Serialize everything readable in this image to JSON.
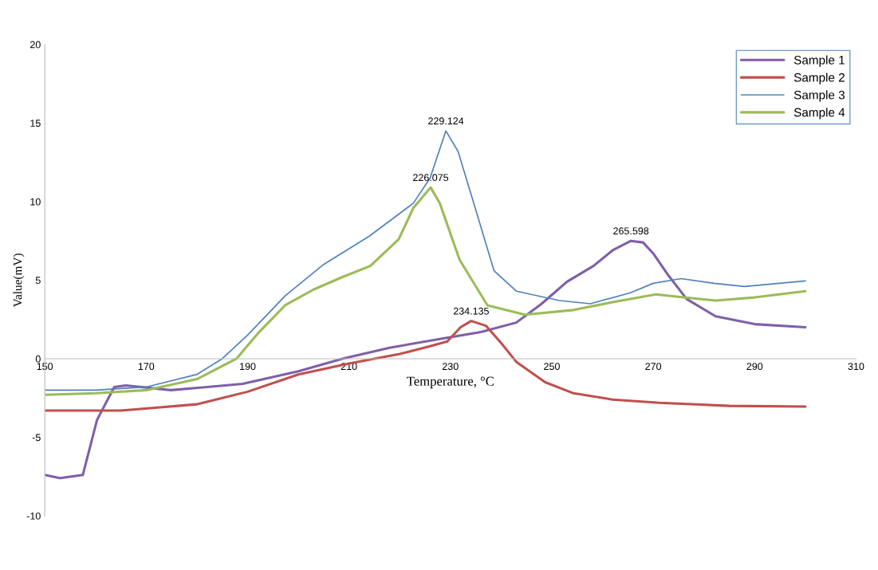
{
  "chart_data": {
    "type": "line",
    "xlabel": "Temperature, °C",
    "ylabel": "Value(mV)",
    "xlim": [
      150,
      310
    ],
    "xticks": [
      150,
      170,
      190,
      210,
      230,
      250,
      270,
      290,
      310
    ],
    "ylim": [
      -10,
      20
    ],
    "yticks": [
      -10,
      -5,
      0,
      5,
      10,
      15,
      20
    ],
    "grid": false,
    "legend": "top right",
    "line_style": "solid",
    "marker": "none",
    "series": [
      {
        "name": "Sample 1",
        "color": "#7f5fa8",
        "x": [
          150,
          153,
          157.5,
          160.3,
          163.7,
          166,
          174.9,
          189,
          200,
          208.7,
          218,
          228.8,
          236,
          243,
          248,
          253,
          258.2,
          262,
          265.6,
          268,
          270,
          273,
          276.6,
          282.3,
          290,
          300
        ],
        "values": [
          -7.4,
          -7.6,
          -7.4,
          -3.9,
          -1.8,
          -1.7,
          -2.0,
          -1.6,
          -0.8,
          0,
          0.7,
          1.3,
          1.7,
          2.3,
          3.5,
          4.9,
          5.9,
          6.9,
          7.5,
          7.4,
          6.7,
          5.3,
          3.8,
          2.7,
          2.2,
          2.0
        ]
      },
      {
        "name": "Sample 2",
        "color": "#c0504d",
        "x": [
          150,
          165,
          180,
          190,
          200,
          210,
          220,
          226,
          229.4,
          232,
          234.1,
          237,
          240,
          243,
          248.7,
          254.3,
          262,
          271.2,
          285,
          300
        ],
        "values": [
          -3.3,
          -3.3,
          -2.9,
          -2.1,
          -1.0,
          -0.3,
          0.3,
          0.8,
          1.1,
          2.0,
          2.4,
          2.1,
          1.0,
          -0.2,
          -1.5,
          -2.2,
          -2.6,
          -2.8,
          -3.0,
          -3.05
        ]
      },
      {
        "name": "Sample 3",
        "color": "#4f81bd",
        "x": [
          150,
          160,
          170,
          180,
          185,
          190,
          197.4,
          205,
          214,
          222.7,
          226,
          229.1,
          231.5,
          234.6,
          238.6,
          243,
          251.5,
          257.6,
          265.5,
          270,
          275.5,
          282,
          288,
          300
        ],
        "values": [
          -2.0,
          -2.0,
          -1.8,
          -1.0,
          0,
          1.5,
          4.0,
          6.0,
          7.8,
          9.9,
          11.5,
          14.5,
          13.2,
          9.9,
          5.6,
          4.3,
          3.7,
          3.5,
          4.2,
          4.8,
          5.1,
          4.8,
          4.6,
          4.95
        ]
      },
      {
        "name": "Sample 4",
        "color": "#9bbb59",
        "x": [
          150,
          160,
          170,
          180,
          187.8,
          192,
          197.4,
          203,
          208.7,
          214.2,
          219.8,
          222.7,
          226.1,
          227.9,
          231.8,
          237.3,
          244.7,
          254.3,
          262,
          270.5,
          276,
          282.3,
          290,
          300
        ],
        "values": [
          -2.3,
          -2.2,
          -2.0,
          -1.3,
          0,
          1.6,
          3.4,
          4.4,
          5.2,
          5.9,
          7.6,
          9.6,
          10.9,
          9.9,
          6.3,
          3.4,
          2.8,
          3.1,
          3.6,
          4.1,
          3.9,
          3.7,
          3.9,
          4.3
        ]
      }
    ],
    "annotations": [
      {
        "text": "229.124",
        "x": 229.1,
        "y": 14.5
      },
      {
        "text": "226.075",
        "x": 226.1,
        "y": 10.9
      },
      {
        "text": "234.135",
        "x": 234.1,
        "y": 2.4
      },
      {
        "text": "265.598",
        "x": 265.6,
        "y": 7.5
      }
    ]
  }
}
